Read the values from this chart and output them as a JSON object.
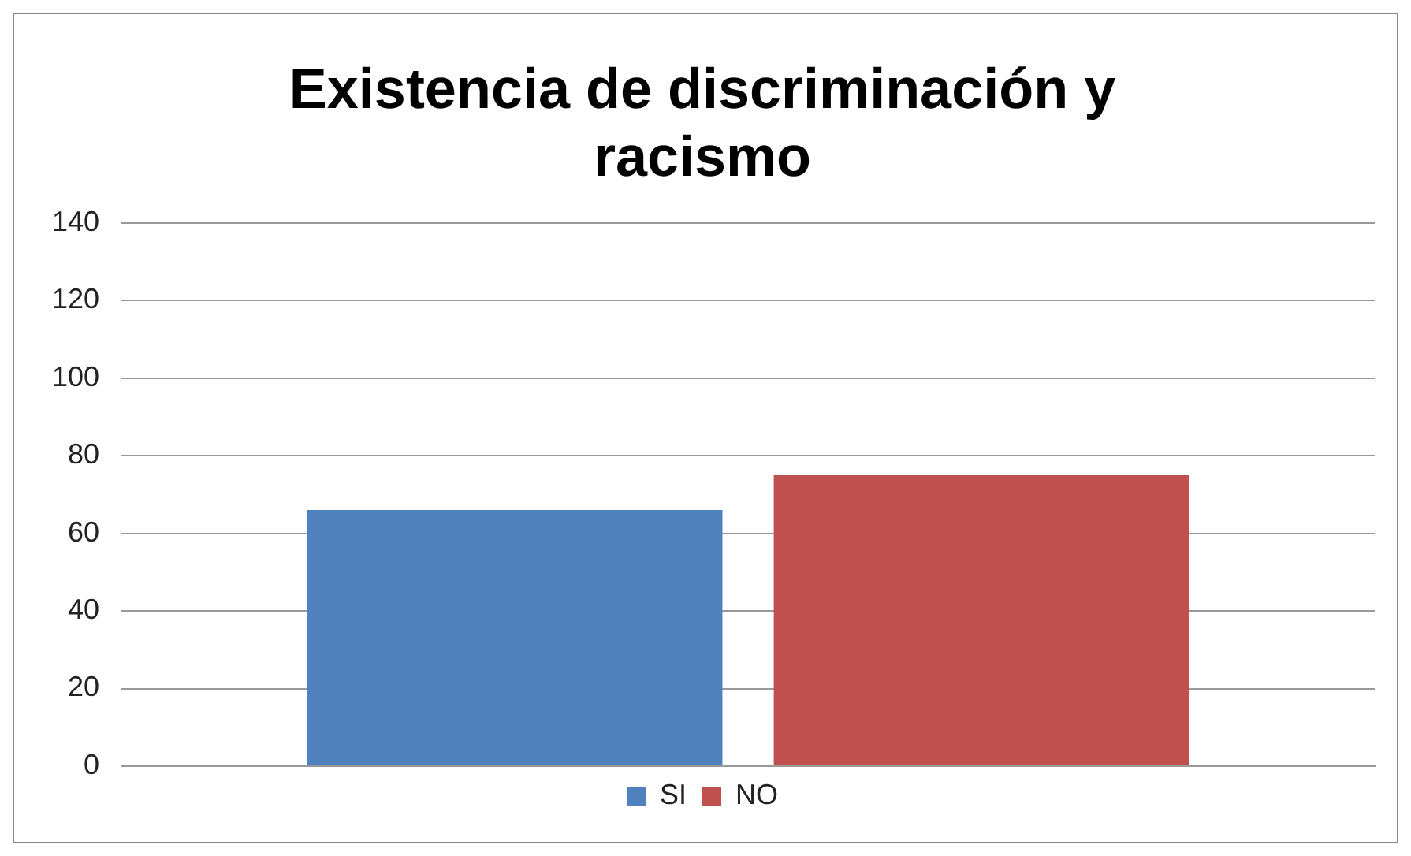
{
  "chart_data": {
    "type": "bar",
    "title": "Existencia de discriminación y racismo",
    "categories": [
      null
    ],
    "series": [
      {
        "name": "SI",
        "color": "#4f81bd",
        "values": [
          66
        ]
      },
      {
        "name": "NO",
        "color": "#c0504d",
        "values": [
          75
        ]
      }
    ],
    "ylim": [
      0,
      140
    ],
    "yticks": [
      0,
      20,
      40,
      60,
      80,
      100,
      120,
      140
    ],
    "grid": "y",
    "legend": "bottom",
    "tick_labels": "y"
  }
}
